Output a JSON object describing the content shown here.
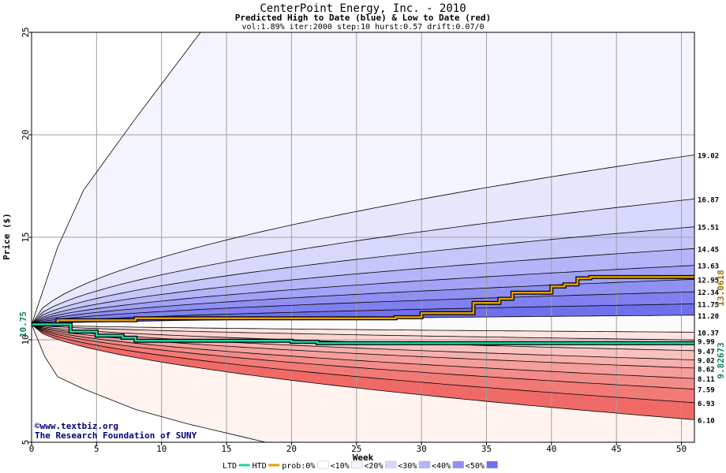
{
  "chart_data": {
    "type": "area",
    "title": "CenterPoint Energy, Inc. - 2010",
    "subtitle": "Predicted High to Date (blue) &  Low to Date (red)",
    "params": "vol:1.89% iter:2000 step:10 hurst:0.57 drift:0.07/0",
    "xlabel": "Week",
    "ylabel": "Price ($)",
    "xlim": [
      0,
      51
    ],
    "ylim": [
      5,
      25
    ],
    "x_ticks": [
      0,
      5,
      10,
      15,
      20,
      25,
      30,
      35,
      40,
      45,
      50
    ],
    "y_ticks": [
      5,
      10,
      15,
      20,
      25
    ],
    "grid": true,
    "start_price": 10.75,
    "start_price_label": "10.75",
    "high_percentile_curves": [
      {
        "end": 19.02,
        "label": "19.02"
      },
      {
        "end": 16.87,
        "label": "16.87"
      },
      {
        "end": 15.51,
        "label": "15.51"
      },
      {
        "end": 14.45,
        "label": "14.45"
      },
      {
        "end": 13.63,
        "label": "13.63"
      },
      {
        "end": 12.95,
        "label": "12.95"
      },
      {
        "end": 12.34,
        "label": "12.34"
      },
      {
        "end": 11.75,
        "label": "11.75"
      },
      {
        "end": 11.2,
        "label": "11.20"
      }
    ],
    "low_percentile_curves": [
      {
        "end": 10.37,
        "label": "10.37"
      },
      {
        "end": 9.99,
        "label": "9.99"
      },
      {
        "end": 9.47,
        "label": "9.47"
      },
      {
        "end": 9.02,
        "label": "9.02"
      },
      {
        "end": 8.62,
        "label": "8.62"
      },
      {
        "end": 8.11,
        "label": "8.11"
      },
      {
        "end": 7.59,
        "label": "7.59"
      },
      {
        "end": 6.93,
        "label": "6.93"
      },
      {
        "end": 6.1,
        "label": "6.10"
      }
    ],
    "outer_high_curve": {
      "x": [
        0,
        2,
        4,
        8,
        13
      ],
      "y": [
        10.75,
        14.5,
        17.3,
        20.8,
        25
      ]
    },
    "outer_low_curve": {
      "x": [
        0,
        1,
        2,
        4,
        8,
        12,
        16,
        18
      ],
      "y": [
        10.75,
        9.2,
        8.2,
        7.6,
        6.6,
        5.9,
        5.3,
        5.0
      ]
    },
    "series": [
      {
        "name": "HTD",
        "color": "#e0a000",
        "x": [
          0,
          1,
          2,
          8,
          28,
          30,
          34,
          36,
          37,
          40,
          41,
          42,
          43,
          51
        ],
        "y": [
          10.75,
          10.75,
          10.95,
          11.05,
          11.1,
          11.3,
          11.8,
          12.0,
          12.3,
          12.6,
          12.7,
          13.0,
          13.06,
          13.06
        ],
        "end_label": "13.0618"
      },
      {
        "name": "LTD",
        "color": "#20d0a0",
        "x": [
          0,
          3,
          5,
          7,
          8,
          20,
          22,
          51
        ],
        "y": [
          10.75,
          10.4,
          10.2,
          10.1,
          9.95,
          9.9,
          9.83,
          9.83
        ],
        "end_label": "9.82673"
      }
    ],
    "band_colors": {
      "high": [
        "#f4f4fe",
        "#e6e6fd",
        "#d8d8fc",
        "#c6c6fa",
        "#b4b4f8",
        "#a2a2f6",
        "#9090f3",
        "#8080f0",
        "#7070ec"
      ],
      "low": [
        "#fff2ef",
        "#fde4e1",
        "#fbd4d1",
        "#f9c2bf",
        "#f7b0ad",
        "#f59e9b",
        "#f38c89",
        "#f17a77",
        "#ef6a67"
      ]
    },
    "legend": {
      "placement": "bottom",
      "items": [
        "LTD",
        "HTD",
        "prob:0%",
        "<10%",
        "<20%",
        "<30%",
        "<40%",
        "<50%"
      ],
      "swatches": [
        "#ffffff",
        "#f4f4fe",
        "#d8d8fc",
        "#b4b4f8",
        "#9090f3",
        "#7070ec"
      ]
    },
    "watermark": [
      "©www.textbiz.org",
      "The Research Foundation of SUNY"
    ]
  }
}
